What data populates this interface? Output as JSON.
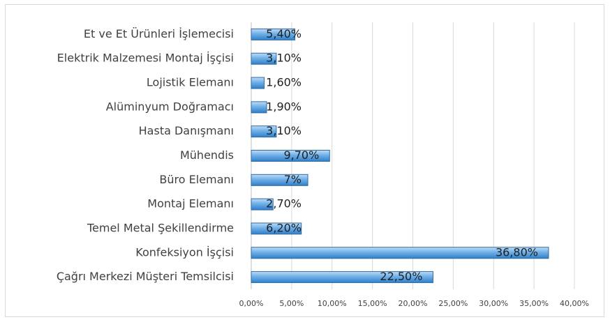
{
  "chart_data": {
    "type": "bar",
    "orientation": "horizontal",
    "categories": [
      "Et ve Et Ürünleri İşlemecisi",
      "Elektrik Malzemesi Montaj İşçisi",
      "Lojistik Elemanı",
      "Alüminyum Doğramacı",
      "Hasta Danışmanı",
      "Mühendis",
      "Büro Elemanı",
      "Montaj Elemanı",
      "Temel Metal Şekillendirme",
      "Konfeksiyon İşçisi",
      "Çağrı Merkezi Müşteri Temsilcisi"
    ],
    "values": [
      5.4,
      3.1,
      1.6,
      1.9,
      3.1,
      9.7,
      7,
      2.7,
      6.2,
      36.8,
      22.5
    ],
    "value_labels": [
      "5,40%",
      "3,10%",
      "1,60%",
      "1,90%",
      "3,10%",
      "9,70%",
      "7%",
      "2,70%",
      "6,20%",
      "36,80%",
      "22,50%"
    ],
    "color": "#5b9bd5",
    "xlim": [
      0,
      40
    ],
    "xticks": [
      {
        "value": 0,
        "label": "0,00%"
      },
      {
        "value": 5,
        "label": "5,00%"
      },
      {
        "value": 10,
        "label": "10,00%"
      },
      {
        "value": 15,
        "label": "15,00%"
      },
      {
        "value": 20,
        "label": "20,00%"
      },
      {
        "value": 25,
        "label": "25,00%"
      },
      {
        "value": 30,
        "label": "30,00%"
      },
      {
        "value": 35,
        "label": "35,00%"
      },
      {
        "value": 40,
        "label": "40,00%"
      }
    ],
    "grid": true
  }
}
